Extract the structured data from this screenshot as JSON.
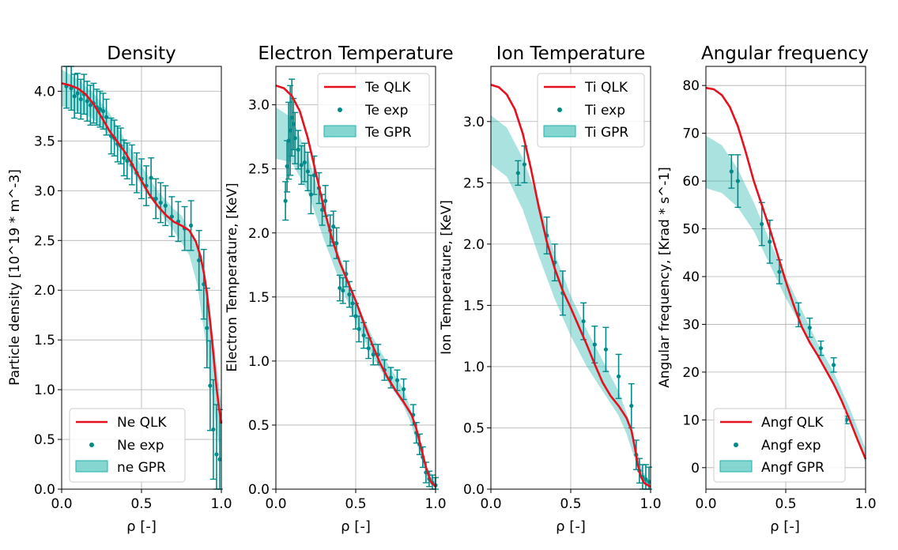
{
  "chart_data": [
    {
      "type": "line",
      "title": "Density",
      "xlabel": "ρ [-]",
      "ylabel": "Particle density [10^19 * m^-3]",
      "xlim": [
        0,
        1
      ],
      "ylim": [
        0,
        4.25
      ],
      "xticks": [
        0,
        0.5,
        1
      ],
      "xtick_labels": [
        "0.0",
        "0.5",
        "1.0"
      ],
      "yticks": [
        0,
        0.5,
        1,
        1.5,
        2,
        2.5,
        3,
        3.5,
        4
      ],
      "ytick_labels": [
        "0.0",
        "0.5",
        "1.0",
        "1.5",
        "2.0",
        "2.5",
        "3.0",
        "3.5",
        "4.0"
      ],
      "grid": true,
      "legend": {
        "position": "lower-left",
        "entries": [
          "Ne QLK",
          "Ne exp",
          "ne GPR"
        ]
      },
      "colors": {
        "model": "#e8101e",
        "exp": "#008b8b",
        "band": "#20b2aa"
      },
      "series": [
        {
          "name": "Ne QLK",
          "kind": "line",
          "x": [
            0,
            0.05,
            0.1,
            0.15,
            0.2,
            0.25,
            0.3,
            0.35,
            0.4,
            0.45,
            0.5,
            0.55,
            0.6,
            0.65,
            0.7,
            0.75,
            0.8,
            0.84,
            0.87,
            0.89,
            0.91,
            0.93,
            0.95,
            0.97,
            0.985,
            1.0
          ],
          "y": [
            4.08,
            4.06,
            4.03,
            3.97,
            3.87,
            3.74,
            3.6,
            3.49,
            3.38,
            3.24,
            3.1,
            2.96,
            2.85,
            2.76,
            2.69,
            2.65,
            2.6,
            2.49,
            2.34,
            2.18,
            1.97,
            1.68,
            1.36,
            1.02,
            0.82,
            0.66
          ]
        },
        {
          "name": "Ne exp",
          "kind": "errorbar",
          "x": [
            0.03,
            0.06,
            0.08,
            0.1,
            0.12,
            0.14,
            0.16,
            0.18,
            0.2,
            0.22,
            0.24,
            0.26,
            0.28,
            0.31,
            0.33,
            0.35,
            0.37,
            0.39,
            0.41,
            0.44,
            0.47,
            0.5,
            0.53,
            0.56,
            0.59,
            0.62,
            0.65,
            0.69,
            0.73,
            0.77,
            0.81,
            0.86,
            0.89,
            0.91,
            0.93,
            0.95,
            0.97,
            0.99
          ],
          "y": [
            4.05,
            4.03,
            3.95,
            3.98,
            3.92,
            3.97,
            3.9,
            3.86,
            3.88,
            3.84,
            3.82,
            3.8,
            3.74,
            3.55,
            3.53,
            3.47,
            3.45,
            3.33,
            3.3,
            3.26,
            3.18,
            3.12,
            3.05,
            3.13,
            2.92,
            2.88,
            2.85,
            2.74,
            2.69,
            2.62,
            2.65,
            2.3,
            2.06,
            1.62,
            1.04,
            0.6,
            0.35,
            0.3
          ],
          "err": [
            0.22,
            0.22,
            0.22,
            0.2,
            0.2,
            0.2,
            0.2,
            0.2,
            0.2,
            0.18,
            0.18,
            0.18,
            0.18,
            0.18,
            0.18,
            0.18,
            0.18,
            0.18,
            0.18,
            0.2,
            0.2,
            0.2,
            0.2,
            0.2,
            0.2,
            0.2,
            0.2,
            0.2,
            0.2,
            0.22,
            0.25,
            0.3,
            0.35,
            0.4,
            0.45,
            0.5,
            0.5,
            0.5
          ]
        },
        {
          "name": "ne GPR",
          "kind": "band",
          "x": [
            0,
            0.1,
            0.2,
            0.3,
            0.4,
            0.5,
            0.6,
            0.7,
            0.75,
            0.8,
            0.85,
            0.9,
            0.95,
            1.0
          ],
          "lower": [
            3.85,
            3.8,
            3.72,
            3.55,
            3.3,
            3.05,
            2.82,
            2.6,
            2.48,
            2.35,
            2.05,
            1.5,
            0.85,
            0.25
          ],
          "upper": [
            4.22,
            4.12,
            3.98,
            3.78,
            3.5,
            3.25,
            3.0,
            2.82,
            2.75,
            2.6,
            2.42,
            2.15,
            1.52,
            0.85
          ]
        }
      ]
    },
    {
      "type": "line",
      "title": "Electron Temperature",
      "xlabel": "ρ [-]",
      "ylabel": "Electron Temperature, [KeV]",
      "xlim": [
        0,
        1
      ],
      "ylim": [
        0,
        3.3
      ],
      "xticks": [
        0,
        0.5,
        1
      ],
      "xtick_labels": [
        "0.0",
        "0.5",
        "1.0"
      ],
      "yticks": [
        0,
        0.5,
        1,
        1.5,
        2,
        2.5,
        3
      ],
      "ytick_labels": [
        "0.0",
        "0.5",
        "1.0",
        "1.5",
        "2.0",
        "2.5",
        "3.0"
      ],
      "grid": true,
      "legend": {
        "position": "top-right",
        "entries": [
          "Te QLK",
          "Te exp",
          "Te GPR"
        ]
      },
      "colors": {
        "model": "#e8101e",
        "exp": "#008b8b",
        "band": "#20b2aa"
      },
      "series": [
        {
          "name": "Te QLK",
          "kind": "line",
          "x": [
            0,
            0.05,
            0.1,
            0.15,
            0.2,
            0.25,
            0.3,
            0.35,
            0.4,
            0.45,
            0.5,
            0.55,
            0.6,
            0.65,
            0.7,
            0.75,
            0.8,
            0.85,
            0.88,
            0.91,
            0.94,
            0.97,
            1.0
          ],
          "y": [
            3.15,
            3.13,
            3.07,
            2.95,
            2.74,
            2.47,
            2.2,
            1.96,
            1.77,
            1.62,
            1.47,
            1.3,
            1.14,
            0.99,
            0.87,
            0.77,
            0.68,
            0.58,
            0.47,
            0.32,
            0.17,
            0.06,
            0.02
          ]
        },
        {
          "name": "Te exp",
          "kind": "errorbar",
          "x": [
            0.06,
            0.07,
            0.08,
            0.09,
            0.1,
            0.11,
            0.12,
            0.14,
            0.16,
            0.18,
            0.2,
            0.22,
            0.24,
            0.27,
            0.29,
            0.31,
            0.34,
            0.36,
            0.38,
            0.4,
            0.42,
            0.44,
            0.46,
            0.48,
            0.5,
            0.52,
            0.55,
            0.58,
            0.61,
            0.64,
            0.68,
            0.72,
            0.76,
            0.8,
            0.86,
            0.88,
            0.9,
            0.92,
            0.94,
            0.96,
            0.98,
            1.0
          ],
          "y": [
            2.25,
            2.52,
            2.72,
            2.8,
            2.9,
            2.85,
            2.74,
            2.65,
            2.53,
            2.55,
            2.48,
            2.3,
            2.45,
            2.35,
            2.18,
            2.25,
            2.02,
            2.05,
            1.92,
            1.57,
            1.55,
            1.68,
            1.52,
            1.45,
            1.35,
            1.25,
            1.2,
            1.1,
            1.05,
            1.05,
            0.93,
            0.87,
            0.85,
            0.78,
            0.58,
            0.44,
            0.35,
            0.25,
            0.13,
            0.08,
            0.05,
            0.03
          ],
          "err": [
            0.15,
            0.2,
            0.3,
            0.35,
            0.3,
            0.2,
            0.2,
            0.15,
            0.15,
            0.15,
            0.15,
            0.15,
            0.15,
            0.12,
            0.12,
            0.12,
            0.12,
            0.12,
            0.12,
            0.1,
            0.1,
            0.1,
            0.1,
            0.1,
            0.1,
            0.1,
            0.1,
            0.08,
            0.08,
            0.08,
            0.08,
            0.08,
            0.08,
            0.08,
            0.08,
            0.08,
            0.08,
            0.08,
            0.08,
            0.06,
            0.06,
            0.06
          ]
        },
        {
          "name": "Te GPR",
          "kind": "band",
          "x": [
            0,
            0.1,
            0.2,
            0.3,
            0.4,
            0.5,
            0.6,
            0.7,
            0.8,
            0.85,
            0.9,
            0.95,
            1.0
          ],
          "lower": [
            2.58,
            2.55,
            2.32,
            1.95,
            1.62,
            1.3,
            1.05,
            0.84,
            0.65,
            0.5,
            0.28,
            0.08,
            0.0
          ],
          "upper": [
            2.98,
            2.9,
            2.6,
            2.2,
            1.82,
            1.48,
            1.2,
            0.98,
            0.78,
            0.6,
            0.4,
            0.16,
            0.08
          ]
        }
      ]
    },
    {
      "type": "line",
      "title": "Ion Temperature",
      "xlabel": "ρ [-]",
      "ylabel": "Ion Temperature, [KeV]",
      "xlim": [
        0,
        1
      ],
      "ylim": [
        0,
        3.45
      ],
      "xticks": [
        0,
        0.5,
        1
      ],
      "xtick_labels": [
        "0.0",
        "0.5",
        "1.0"
      ],
      "yticks": [
        0,
        0.5,
        1,
        1.5,
        2,
        2.5,
        3
      ],
      "ytick_labels": [
        "0.0",
        "0.5",
        "1.0",
        "1.5",
        "2.0",
        "2.5",
        "3.0"
      ],
      "grid": true,
      "legend": {
        "position": "top-right",
        "entries": [
          "Ti QLK",
          "Ti exp",
          "Ti GPR"
        ]
      },
      "colors": {
        "model": "#e8101e",
        "exp": "#008b8b",
        "band": "#20b2aa"
      },
      "series": [
        {
          "name": "Ti QLK",
          "kind": "line",
          "x": [
            0,
            0.05,
            0.1,
            0.15,
            0.2,
            0.25,
            0.3,
            0.35,
            0.4,
            0.45,
            0.5,
            0.55,
            0.6,
            0.65,
            0.7,
            0.75,
            0.8,
            0.85,
            0.88,
            0.9,
            0.92,
            0.94,
            0.96,
            1.0
          ],
          "y": [
            3.3,
            3.28,
            3.22,
            3.1,
            2.9,
            2.62,
            2.3,
            2.02,
            1.8,
            1.62,
            1.48,
            1.33,
            1.18,
            1.02,
            0.87,
            0.76,
            0.68,
            0.58,
            0.48,
            0.35,
            0.2,
            0.1,
            0.05,
            0.02
          ]
        },
        {
          "name": "Ti exp",
          "kind": "errorbar",
          "x": [
            0.17,
            0.21,
            0.35,
            0.4,
            0.45,
            0.58,
            0.65,
            0.72,
            0.8,
            0.88,
            0.91,
            0.93,
            0.95,
            0.97,
            0.99
          ],
          "y": [
            2.58,
            2.65,
            2.07,
            1.85,
            1.6,
            1.37,
            1.18,
            1.14,
            0.92,
            0.68,
            0.28,
            0.15,
            0.1,
            0.08,
            0.06
          ],
          "err": [
            0.1,
            0.15,
            0.15,
            0.15,
            0.18,
            0.15,
            0.15,
            0.18,
            0.18,
            0.18,
            0.12,
            0.1,
            0.1,
            0.12,
            0.12
          ]
        },
        {
          "name": "Ti GPR",
          "kind": "band",
          "x": [
            0,
            0.1,
            0.2,
            0.3,
            0.4,
            0.5,
            0.6,
            0.7,
            0.8,
            0.85,
            0.9,
            0.95,
            1.0
          ],
          "lower": [
            2.65,
            2.55,
            2.28,
            1.9,
            1.55,
            1.25,
            1.0,
            0.8,
            0.6,
            0.45,
            0.25,
            0.05,
            0.0
          ],
          "upper": [
            3.05,
            2.95,
            2.7,
            2.35,
            1.92,
            1.58,
            1.3,
            1.05,
            0.8,
            0.62,
            0.38,
            0.15,
            0.05
          ]
        }
      ]
    },
    {
      "type": "line",
      "title": "Angular frequency",
      "xlabel": "ρ [-]",
      "ylabel": "Angular frequency, [Krad * s^-1]",
      "xlim": [
        0,
        1
      ],
      "ylim": [
        -4.5,
        84
      ],
      "xticks": [
        0,
        0.5,
        1
      ],
      "xtick_labels": [
        "0.0",
        "0.5",
        "1.0"
      ],
      "yticks": [
        0,
        10,
        20,
        30,
        40,
        50,
        60,
        70,
        80
      ],
      "ytick_labels": [
        "0",
        "10",
        "20",
        "30",
        "40",
        "50",
        "60",
        "70",
        "80"
      ],
      "grid": true,
      "legend": {
        "position": "lower-left",
        "entries": [
          "Angf QLK",
          "Angf exp",
          "Angf GPR"
        ]
      },
      "colors": {
        "model": "#e8101e",
        "exp": "#008b8b",
        "band": "#20b2aa"
      },
      "series": [
        {
          "name": "Angf QLK",
          "kind": "line",
          "x": [
            0,
            0.05,
            0.1,
            0.15,
            0.2,
            0.25,
            0.3,
            0.35,
            0.4,
            0.45,
            0.5,
            0.55,
            0.6,
            0.65,
            0.7,
            0.75,
            0.8,
            0.85,
            0.9,
            0.95,
            1.0
          ],
          "y": [
            79.5,
            79.2,
            78,
            75.5,
            71.5,
            66,
            60,
            55,
            50,
            44.5,
            39,
            34,
            29.5,
            26.2,
            23.5,
            20.5,
            17.5,
            14,
            10,
            5.8,
            1.8
          ]
        },
        {
          "name": "Angf exp",
          "kind": "errorbar",
          "x": [
            0.16,
            0.2,
            0.35,
            0.4,
            0.46,
            0.58,
            0.65,
            0.72,
            0.8,
            0.88
          ],
          "y": [
            62,
            60,
            51,
            47.3,
            41,
            32,
            29.3,
            25,
            21.5,
            10
          ],
          "err": [
            3.5,
            5.5,
            4.5,
            4.5,
            2.5,
            2.5,
            2,
            1.5,
            1.5,
            0.8
          ]
        },
        {
          "name": "Angf GPR",
          "kind": "band",
          "x": [
            0,
            0.1,
            0.2,
            0.3,
            0.4,
            0.5,
            0.6,
            0.7,
            0.8,
            0.9,
            1.0
          ],
          "lower": [
            58.5,
            57.5,
            54.5,
            49.5,
            42.5,
            35.5,
            29.5,
            23.5,
            17.5,
            10.5,
            1
          ],
          "upper": [
            69.5,
            67.5,
            62.5,
            55.5,
            47.5,
            40,
            33,
            26,
            20,
            12.5,
            4
          ]
        }
      ]
    }
  ]
}
